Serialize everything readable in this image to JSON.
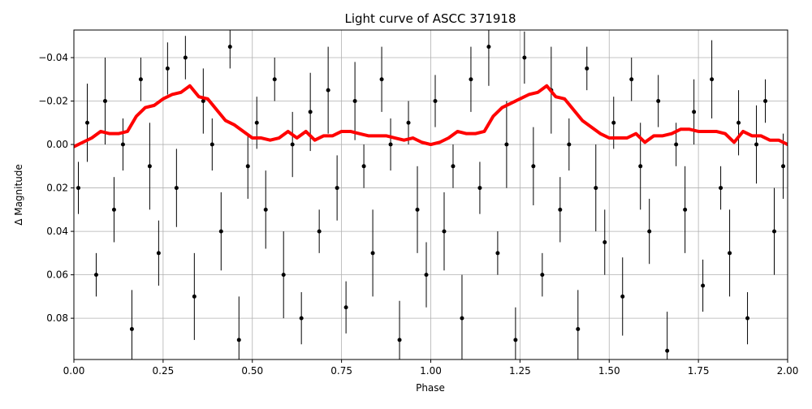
{
  "chart_data": {
    "type": "scatter",
    "title": "Light curve of ASCC 371918",
    "x_label": "Phase",
    "y_label": "Δ Magnitude",
    "xlim": [
      0,
      2
    ],
    "ylim": [
      0.099,
      -0.0527
    ],
    "grid": true,
    "xticks": [
      {
        "value": 0,
        "label": "0.00"
      },
      {
        "value": 0.25,
        "label": "0.25"
      },
      {
        "value": 0.5,
        "label": "0.50"
      },
      {
        "value": 0.75,
        "label": "0.75"
      },
      {
        "value": 1,
        "label": "1.00"
      },
      {
        "value": 1.25,
        "label": "1.25"
      },
      {
        "value": 1.5,
        "label": "1.50"
      },
      {
        "value": 1.75,
        "label": "1.75"
      },
      {
        "value": 2,
        "label": "2.00"
      }
    ],
    "yticks": [
      {
        "value": -0.04,
        "label": "−0.04"
      },
      {
        "value": -0.02,
        "label": "−0.02"
      },
      {
        "value": 0,
        "label": "0.00"
      },
      {
        "value": 0.02,
        "label": "0.02"
      },
      {
        "value": 0.04,
        "label": "0.04"
      },
      {
        "value": 0.06,
        "label": "0.06"
      },
      {
        "value": 0.08,
        "label": "0.08"
      }
    ],
    "series": [
      {
        "kind": "errorbar",
        "color": "#000000",
        "x": [
          0.0125,
          0.0375,
          0.0625,
          0.0875,
          0.1125,
          0.1375,
          0.1625,
          0.1875,
          0.2125,
          0.2375,
          0.2625,
          0.2875,
          0.3125,
          0.3375,
          0.3625,
          0.3875,
          0.4125,
          0.4375,
          0.4625,
          0.4875,
          0.5125,
          0.5375,
          0.5625,
          0.5875,
          0.6125,
          0.6375,
          0.6625,
          0.6875,
          0.7125,
          0.7375,
          0.7625,
          0.7875,
          0.8125,
          0.8375,
          0.8625,
          0.8875,
          0.9125,
          0.9375,
          0.9625,
          0.9875,
          1.0125,
          1.0375,
          1.0625,
          1.0875,
          1.1125,
          1.1375,
          1.1625,
          1.1875,
          1.2125,
          1.2375,
          1.2625,
          1.2875,
          1.3125,
          1.3375,
          1.3625,
          1.3875,
          1.4125,
          1.4375,
          1.4625,
          1.4875,
          1.5125,
          1.5375,
          1.5625,
          1.5875,
          1.6125,
          1.6375,
          1.6625,
          1.6875,
          1.7125,
          1.7375,
          1.7625,
          1.7875,
          1.8125,
          1.8375,
          1.8625,
          1.8875,
          1.9125,
          1.9375,
          1.9625,
          1.9875
        ],
        "values": [
          0.02,
          -0.01,
          0.06,
          -0.02,
          0.03,
          0.0,
          0.085,
          -0.03,
          0.01,
          0.05,
          -0.035,
          0.02,
          -0.04,
          0.07,
          -0.02,
          0.0,
          0.04,
          -0.045,
          0.09,
          0.01,
          -0.01,
          0.03,
          -0.03,
          0.06,
          0.0,
          0.08,
          -0.015,
          0.04,
          -0.025,
          0.02,
          0.075,
          -0.02,
          0.01,
          0.05,
          -0.03,
          0.0,
          0.09,
          -0.01,
          0.03,
          0.06,
          -0.02,
          0.04,
          0.01,
          0.08,
          -0.03,
          0.02,
          -0.045,
          0.05,
          0.0,
          0.09,
          -0.04,
          0.01,
          0.06,
          -0.025,
          0.03,
          0.0,
          0.085,
          -0.035,
          0.02,
          0.045,
          -0.01,
          0.07,
          -0.03,
          0.01,
          0.04,
          -0.02,
          0.095,
          0.0,
          0.03,
          -0.015,
          0.065,
          -0.03,
          0.02,
          0.05,
          -0.01,
          0.08,
          0.0,
          -0.02,
          0.04,
          0.01
        ],
        "errors": [
          0.012,
          0.018,
          0.01,
          0.02,
          0.015,
          0.012,
          0.018,
          0.01,
          0.02,
          0.015,
          0.012,
          0.018,
          0.01,
          0.02,
          0.015,
          0.012,
          0.018,
          0.01,
          0.02,
          0.015,
          0.012,
          0.018,
          0.01,
          0.02,
          0.015,
          0.012,
          0.018,
          0.01,
          0.02,
          0.015,
          0.012,
          0.018,
          0.01,
          0.02,
          0.015,
          0.012,
          0.018,
          0.01,
          0.02,
          0.015,
          0.012,
          0.018,
          0.01,
          0.02,
          0.015,
          0.012,
          0.018,
          0.01,
          0.02,
          0.015,
          0.012,
          0.018,
          0.01,
          0.02,
          0.015,
          0.012,
          0.018,
          0.01,
          0.02,
          0.015,
          0.012,
          0.018,
          0.01,
          0.02,
          0.015,
          0.012,
          0.018,
          0.01,
          0.02,
          0.015,
          0.012,
          0.018,
          0.01,
          0.02,
          0.015,
          0.012,
          0.018,
          0.01,
          0.02,
          0.015
        ]
      },
      {
        "kind": "line",
        "color": "#ff0000",
        "x": [
          0,
          0.025,
          0.05,
          0.075,
          0.1,
          0.125,
          0.15,
          0.175,
          0.2,
          0.225,
          0.25,
          0.275,
          0.3,
          0.325,
          0.35,
          0.375,
          0.4,
          0.425,
          0.45,
          0.475,
          0.5,
          0.525,
          0.55,
          0.575,
          0.6,
          0.625,
          0.65,
          0.675,
          0.7,
          0.725,
          0.75,
          0.775,
          0.8,
          0.825,
          0.85,
          0.875,
          0.9,
          0.925,
          0.95,
          0.975,
          1.0,
          1.025,
          1.05,
          1.075,
          1.1,
          1.125,
          1.15,
          1.175,
          1.2,
          1.225,
          1.25,
          1.275,
          1.3,
          1.325,
          1.35,
          1.375,
          1.4,
          1.425,
          1.45,
          1.475,
          1.5,
          1.525,
          1.55,
          1.575,
          1.6,
          1.625,
          1.65,
          1.675,
          1.7,
          1.725,
          1.75,
          1.775,
          1.8,
          1.825,
          1.85,
          1.875,
          1.9,
          1.925,
          1.95,
          1.975,
          2.0
        ],
        "values": [
          0.001,
          -0.001,
          -0.003,
          -0.006,
          -0.005,
          -0.005,
          -0.006,
          -0.013,
          -0.017,
          -0.018,
          -0.021,
          -0.023,
          -0.024,
          -0.027,
          -0.022,
          -0.021,
          -0.016,
          -0.011,
          -0.009,
          -0.006,
          -0.003,
          -0.003,
          -0.002,
          -0.003,
          -0.006,
          -0.003,
          -0.006,
          -0.002,
          -0.004,
          -0.004,
          -0.006,
          -0.006,
          -0.005,
          -0.004,
          -0.004,
          -0.004,
          -0.003,
          -0.002,
          -0.003,
          -0.001,
          0.0,
          -0.001,
          -0.003,
          -0.006,
          -0.005,
          -0.005,
          -0.006,
          -0.013,
          -0.017,
          -0.019,
          -0.021,
          -0.023,
          -0.024,
          -0.027,
          -0.022,
          -0.021,
          -0.016,
          -0.011,
          -0.008,
          -0.005,
          -0.003,
          -0.003,
          -0.003,
          -0.005,
          -0.001,
          -0.004,
          -0.004,
          -0.005,
          -0.007,
          -0.007,
          -0.006,
          -0.006,
          -0.006,
          -0.005,
          -0.001,
          -0.006,
          -0.004,
          -0.004,
          -0.002,
          -0.002,
          0.0
        ]
      }
    ]
  }
}
